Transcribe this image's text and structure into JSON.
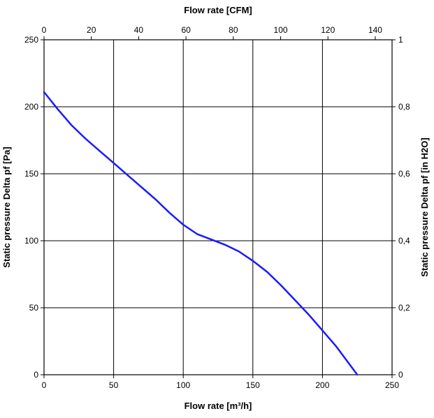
{
  "chart_data": {
    "type": "line",
    "title": "",
    "xlabel": "Flow rate [m³/h]",
    "x2label": "Flow rate [CFM]",
    "ylabel": "Static pressure Delta pf [Pa]",
    "y2label": "Static pressure Delta pf [in H2O]",
    "xlim": [
      0,
      250
    ],
    "ylim": [
      0,
      250
    ],
    "x2lim": [
      0,
      147.1
    ],
    "y2lim": [
      0,
      1
    ],
    "grid": true,
    "xticks": [
      "0",
      "50",
      "100",
      "150",
      "200",
      "250"
    ],
    "yticks": [
      "0",
      "50",
      "100",
      "150",
      "200",
      "250"
    ],
    "x2ticks": [
      "0",
      "20",
      "40",
      "60",
      "80",
      "100",
      "120",
      "140"
    ],
    "y2ticks": [
      "0",
      "0,2",
      "0,4",
      "0,6",
      "0,8",
      "1"
    ],
    "color": "#1a1aff",
    "series": [
      {
        "x": [
          0,
          10,
          20,
          30,
          40,
          50,
          60,
          70,
          80,
          90,
          100,
          110,
          120,
          130,
          140,
          150,
          160,
          170,
          180,
          190,
          200,
          210,
          225
        ],
        "y": [
          211,
          198,
          186,
          176,
          167,
          158,
          149,
          140,
          131,
          121,
          112,
          105,
          101,
          97,
          92,
          85,
          77,
          67,
          56,
          45,
          33,
          21,
          0
        ]
      }
    ]
  }
}
